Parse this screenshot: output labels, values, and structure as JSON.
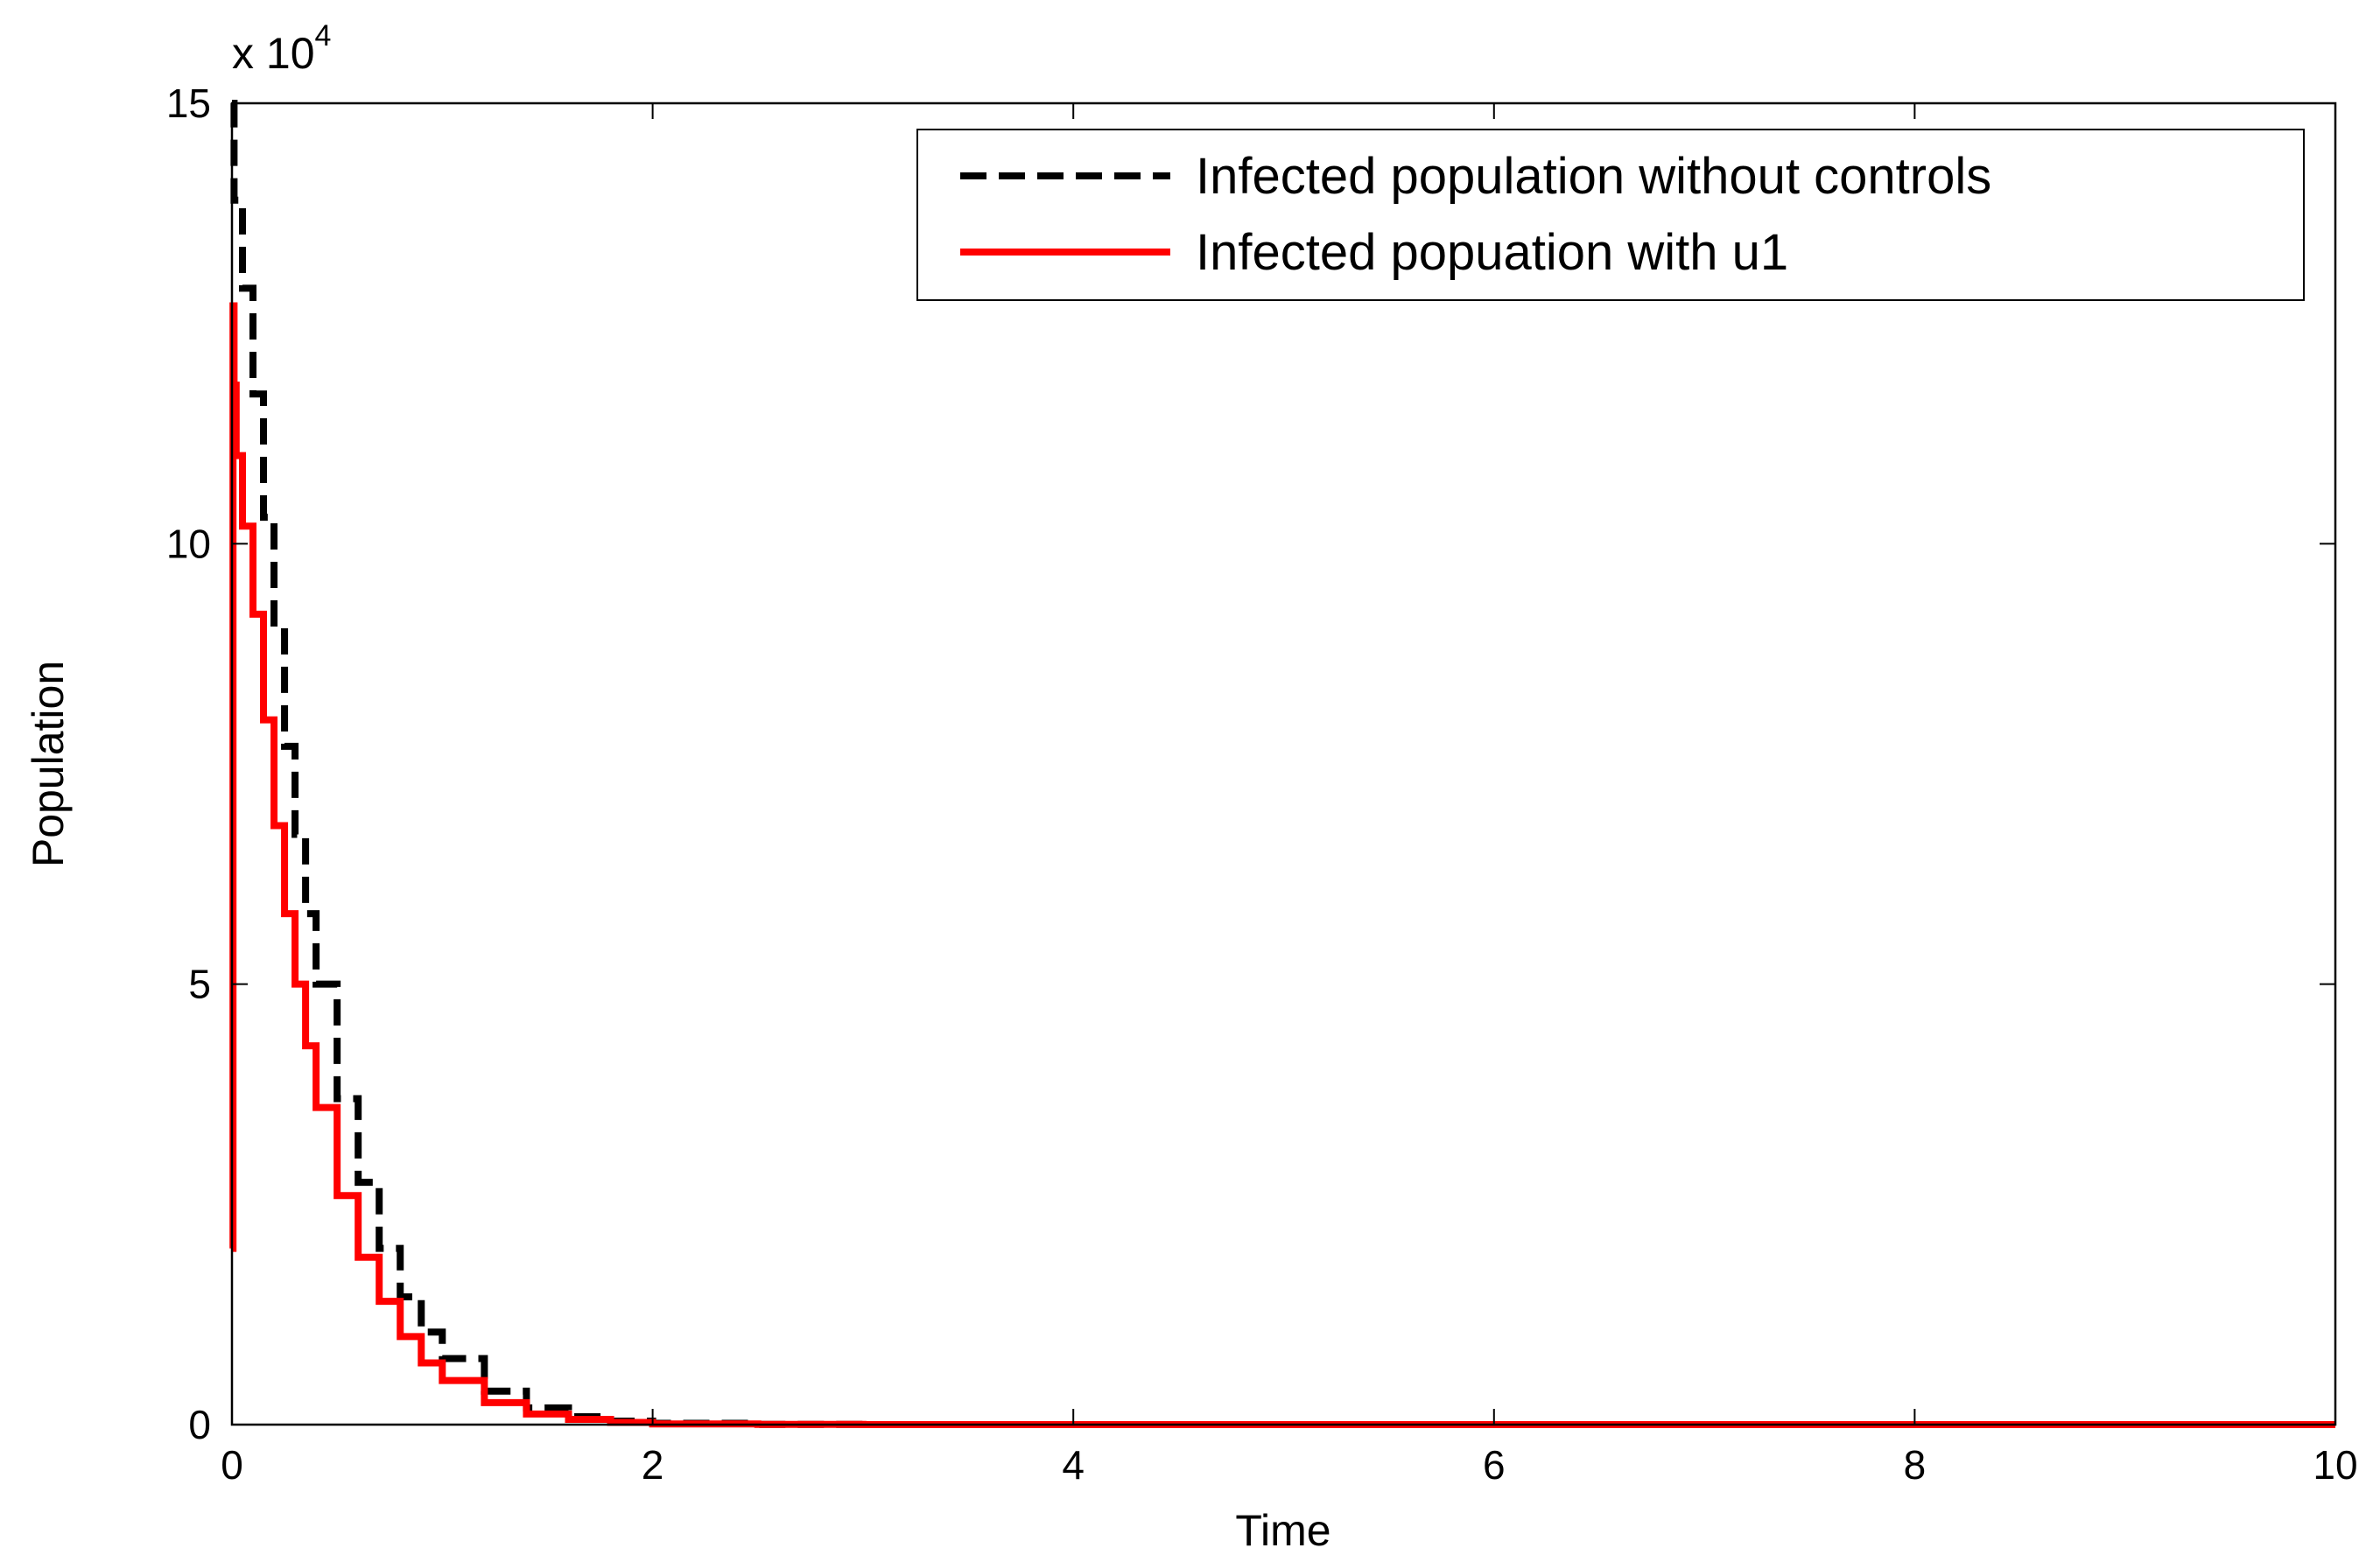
{
  "chart_data": {
    "type": "line",
    "title": "",
    "xlabel": "Time",
    "ylabel": "Population",
    "y_multiplier_label": "x 10",
    "y_multiplier_exponent": "4",
    "xlim": [
      0,
      10
    ],
    "ylim": [
      0,
      150000
    ],
    "xticks": [
      0,
      2,
      4,
      6,
      8,
      10
    ],
    "yticks": [
      0,
      50000,
      100000,
      150000
    ],
    "xtick_labels": [
      "0",
      "2",
      "4",
      "6",
      "8",
      "10"
    ],
    "ytick_labels": [
      "0",
      "5",
      "10",
      "15"
    ],
    "grid": false,
    "legend_position": "top-right",
    "series": [
      {
        "name": "Infected population without controls",
        "color": "#000000",
        "style": "dashed",
        "x": [
          0,
          0.01,
          0.05,
          0.1,
          0.15,
          0.2,
          0.25,
          0.3,
          0.35,
          0.4,
          0.5,
          0.6,
          0.7,
          0.8,
          0.9,
          1.0,
          1.2,
          1.4,
          1.6,
          1.8,
          2.0,
          2.5,
          3,
          4,
          5,
          6,
          7,
          8,
          9,
          10
        ],
        "values": [
          150000,
          139000,
          129000,
          117000,
          103000,
          90000,
          77000,
          67000,
          58000,
          50000,
          37000,
          27500,
          20000,
          14500,
          10500,
          7500,
          3800,
          1900,
          900,
          400,
          150,
          30,
          0,
          0,
          0,
          0,
          0,
          0,
          0,
          0
        ]
      },
      {
        "name": "Infected popuation with u1",
        "color": "#ff0000",
        "style": "solid",
        "x": [
          0,
          0.005,
          0.01,
          0.02,
          0.05,
          0.1,
          0.15,
          0.2,
          0.25,
          0.3,
          0.35,
          0.4,
          0.5,
          0.6,
          0.7,
          0.8,
          0.9,
          1.0,
          1.2,
          1.4,
          1.6,
          1.8,
          2.0,
          2.5,
          3,
          4,
          5,
          6,
          7,
          8,
          9,
          10
        ],
        "values": [
          20000,
          127000,
          118000,
          110000,
          102000,
          92000,
          80000,
          68000,
          58000,
          50000,
          43000,
          36000,
          26000,
          19000,
          14000,
          10000,
          7000,
          5000,
          2500,
          1200,
          600,
          250,
          80,
          20,
          0,
          0,
          0,
          0,
          0,
          0,
          0,
          0
        ]
      }
    ]
  }
}
